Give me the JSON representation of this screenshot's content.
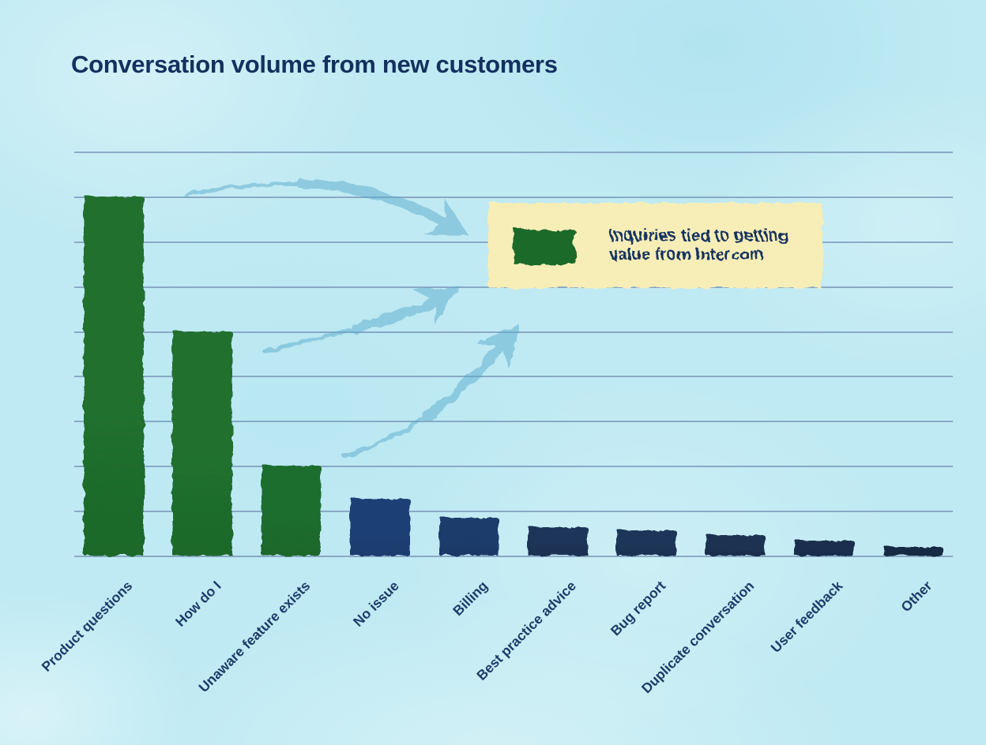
{
  "title": "Conversation volume from new customers",
  "legend": {
    "line1": "Inquiries tied to getting",
    "line2": "value from Intercom",
    "label": "Inquiries tied to getting value from Intercom"
  },
  "colors": {
    "background": "#c0eaf3",
    "title_text": "#13305e",
    "label_text": "#1d3b69",
    "gridline": "#7593b6",
    "green_bar": "#20702e",
    "legend_background": "#f7eeb7",
    "legend_swatch": "#1d6a2b",
    "arrow": "#5aabcb"
  },
  "chart_data": {
    "type": "bar",
    "title": "Conversation volume from new customers",
    "xlabel": "",
    "ylabel": "",
    "ylim": [
      0,
      9
    ],
    "gridline_step": 1,
    "grid": "horizontal, unlabeled (no y-axis tick labels shown)",
    "legend_position": "upper right, cream callout box",
    "categories": [
      "Product questions",
      "How do I",
      "Unaware feature exists",
      "No issue",
      "Billing",
      "Best practice advice",
      "Bug report",
      "Duplicate conversation",
      "User feedback",
      "Other"
    ],
    "series": [
      {
        "name": "Conversation volume",
        "values": [
          8.0,
          5.0,
          2.0,
          1.27,
          0.84,
          0.64,
          0.57,
          0.46,
          0.34,
          0.2
        ]
      }
    ],
    "highlighted": [
      true,
      true,
      true,
      false,
      false,
      false,
      false,
      false,
      false,
      false
    ],
    "bar_colors": [
      "#20702e",
      "#20702e",
      "#1f6e2e",
      "#1e4076",
      "#1e3c6c",
      "#1c3458",
      "#1c3559",
      "#1b3151",
      "#1a2f4e",
      "#192c45"
    ],
    "annotations": [
      "Three hand-drawn curved arrows point from the tops of the three green bars to the legend box reading 'Inquiries tied to getting value from Intercom'"
    ]
  }
}
